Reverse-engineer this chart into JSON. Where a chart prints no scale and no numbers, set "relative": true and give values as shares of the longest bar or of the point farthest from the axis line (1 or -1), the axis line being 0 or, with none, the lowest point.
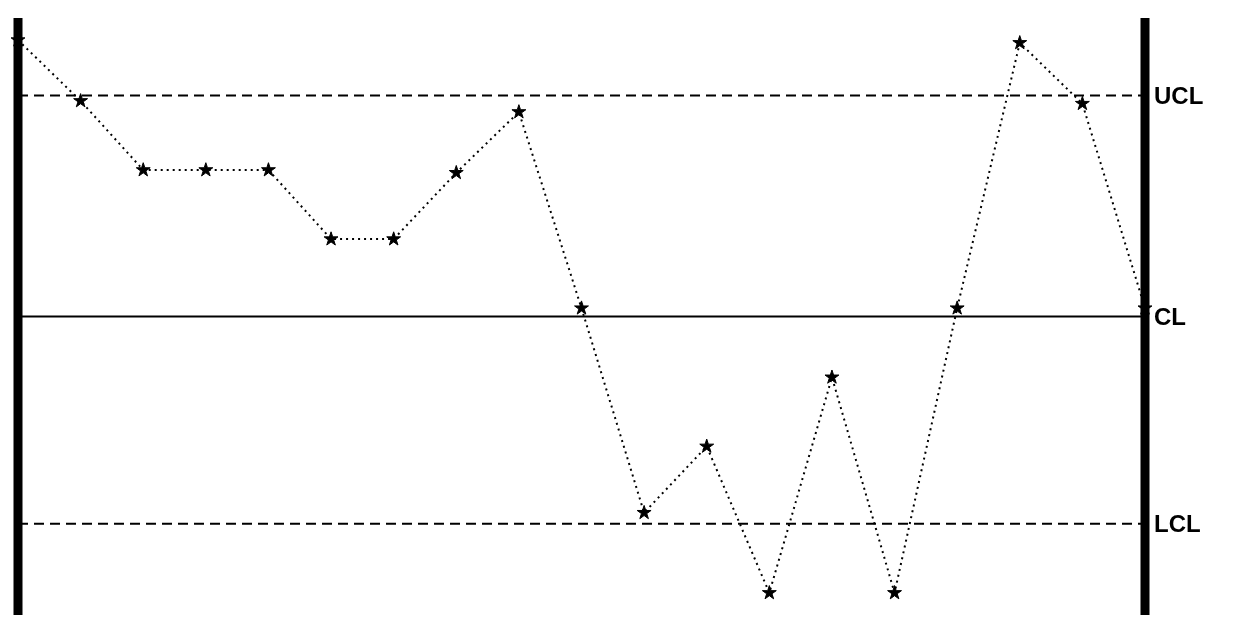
{
  "chart_data": {
    "type": "line",
    "relative": true,
    "categories": [
      null,
      null,
      null,
      null,
      null,
      null,
      null,
      null,
      null,
      null,
      null,
      null,
      null,
      null,
      null,
      null,
      null,
      null,
      null
    ],
    "series": [
      {
        "color": "#000000",
        "marker": "star",
        "line_style": "dotted",
        "values": [
          1.0,
          0.78,
          0.53,
          0.53,
          0.53,
          0.28,
          0.28,
          0.52,
          0.74,
          0.03,
          -0.71,
          -0.47,
          -1.0,
          -0.22,
          -1.0,
          0.03,
          0.99,
          0.77,
          0.03
        ]
      }
    ],
    "ref_lines": [
      {
        "axis": "y",
        "value": 0.8,
        "label": "UCL",
        "line_style": "dashed",
        "color": "#000000"
      },
      {
        "axis": "y",
        "value": 0,
        "label": "CL",
        "line_style": "solid",
        "color": "#000000"
      },
      {
        "axis": "y",
        "value": -0.75,
        "label": "LCL",
        "line_style": "dashed",
        "color": "#000000"
      }
    ],
    "grid": false
  }
}
